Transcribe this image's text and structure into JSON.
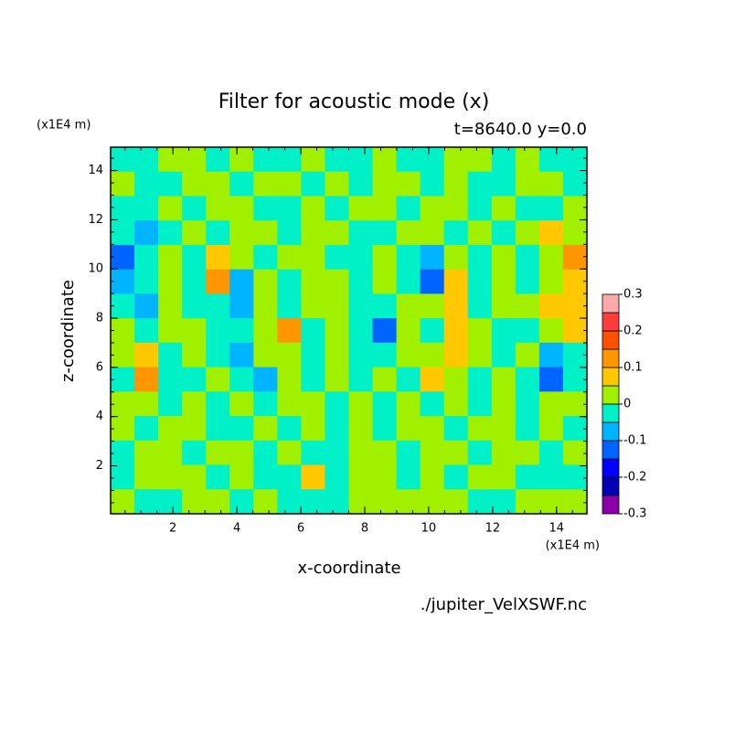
{
  "chart_data": {
    "type": "contour",
    "title": "Filter for acoustic mode (x)",
    "subtitle": "t=8640.0 y=0.0",
    "x_label": "x-coordinate",
    "y_label": "z-coordinate",
    "x_unit": "(x1E4 m)",
    "y_unit": "(x1E4 m)",
    "source": "./jupiter_VelXSWF.nc",
    "xlim": [
      0.05,
      14.95
    ],
    "ylim": [
      0.05,
      14.95
    ],
    "xticks": [
      2,
      4,
      6,
      8,
      10,
      12,
      14
    ],
    "yticks": [
      2,
      4,
      6,
      8,
      10,
      12,
      14
    ],
    "levels": [
      -0.3,
      -0.25,
      -0.2,
      -0.15,
      -0.1,
      -0.05,
      0,
      0.05,
      0.1,
      0.15,
      0.2,
      0.25,
      0.3
    ],
    "colors": [
      "#8c00a8",
      "#0000b4",
      "#0000ff",
      "#0064ff",
      "#00b4ff",
      "#00f0c8",
      "#a0f000",
      "#ffc800",
      "#ff9600",
      "#ff5000",
      "#ff3c3c",
      "#ffaaaa"
    ],
    "colorbar_ticks": [
      -0.3,
      -0.2,
      -0.1,
      0,
      0.1,
      0.2,
      0.3
    ],
    "z": [
      [
        -0.02,
        -0.02,
        0.02,
        0.02,
        -0.02,
        0.02,
        -0.02,
        -0.02,
        0.02,
        -0.02,
        -0.02,
        0.02,
        -0.02,
        -0.02,
        0.02,
        0.02,
        -0.02,
        0.02,
        -0.02,
        -0.02
      ],
      [
        0.02,
        -0.02,
        -0.02,
        0.02,
        0.02,
        -0.02,
        0.02,
        0.02,
        -0.02,
        0.02,
        -0.02,
        0.02,
        0.02,
        -0.02,
        0.02,
        -0.02,
        -0.02,
        0.02,
        0.02,
        -0.02
      ],
      [
        -0.02,
        -0.02,
        0.02,
        -0.02,
        0.02,
        0.02,
        -0.02,
        -0.02,
        0.02,
        -0.02,
        0.02,
        0.02,
        -0.02,
        0.02,
        0.02,
        -0.02,
        0.02,
        -0.02,
        -0.02,
        0.02
      ],
      [
        -0.02,
        -0.06,
        -0.02,
        0.02,
        -0.02,
        0.02,
        0.02,
        -0.02,
        0.02,
        0.02,
        -0.02,
        -0.02,
        0.02,
        0.02,
        -0.02,
        0.02,
        -0.02,
        0.02,
        0.06,
        0.02
      ],
      [
        -0.12,
        -0.02,
        0.02,
        -0.02,
        0.07,
        0.02,
        -0.02,
        0.02,
        0.02,
        -0.02,
        -0.02,
        0.02,
        -0.02,
        -0.07,
        0.02,
        -0.02,
        0.02,
        -0.02,
        0.02,
        0.12
      ],
      [
        -0.06,
        -0.02,
        0.02,
        -0.02,
        0.12,
        -0.06,
        0.02,
        -0.02,
        0.02,
        0.02,
        -0.02,
        0.02,
        -0.02,
        -0.12,
        0.06,
        -0.02,
        0.02,
        -0.02,
        0.02,
        0.06
      ],
      [
        -0.02,
        -0.06,
        0.02,
        -0.02,
        -0.02,
        -0.07,
        0.02,
        -0.02,
        0.02,
        0.02,
        -0.02,
        -0.02,
        0.02,
        0.02,
        0.07,
        -0.02,
        0.02,
        0.02,
        0.06,
        0.07
      ],
      [
        0.02,
        -0.02,
        0.02,
        0.02,
        -0.02,
        -0.02,
        0.02,
        0.12,
        -0.02,
        0.02,
        -0.02,
        -0.12,
        0.02,
        -0.02,
        0.07,
        0.02,
        -0.02,
        -0.02,
        0.02,
        0.06
      ],
      [
        0.02,
        0.07,
        -0.02,
        0.02,
        -0.02,
        -0.06,
        0.02,
        0.02,
        -0.02,
        0.02,
        -0.02,
        -0.02,
        0.02,
        0.02,
        0.06,
        0.02,
        -0.02,
        0.02,
        -0.06,
        -0.02
      ],
      [
        -0.02,
        0.12,
        -0.02,
        -0.02,
        0.02,
        -0.02,
        -0.07,
        0.02,
        -0.02,
        0.02,
        -0.02,
        0.02,
        -0.02,
        0.07,
        0.02,
        -0.02,
        0.02,
        -0.02,
        -0.12,
        -0.02
      ],
      [
        0.02,
        0.02,
        -0.02,
        0.02,
        -0.02,
        0.02,
        -0.02,
        0.02,
        0.02,
        -0.02,
        0.02,
        -0.02,
        0.02,
        -0.02,
        0.02,
        -0.02,
        0.02,
        -0.02,
        0.02,
        0.02
      ],
      [
        0.02,
        -0.02,
        0.02,
        0.02,
        -0.02,
        -0.02,
        0.02,
        -0.02,
        0.02,
        -0.02,
        0.02,
        -0.02,
        0.02,
        0.02,
        -0.02,
        0.02,
        0.02,
        -0.02,
        0.02,
        -0.02
      ],
      [
        -0.02,
        0.02,
        0.02,
        -0.02,
        0.02,
        0.02,
        -0.02,
        0.02,
        -0.02,
        -0.02,
        0.02,
        0.02,
        -0.02,
        0.02,
        0.02,
        -0.02,
        0.02,
        0.02,
        -0.02,
        0.02
      ],
      [
        -0.02,
        0.02,
        0.02,
        0.02,
        -0.02,
        0.02,
        -0.02,
        -0.02,
        0.07,
        -0.02,
        0.02,
        0.02,
        -0.02,
        0.02,
        -0.02,
        0.02,
        0.02,
        -0.02,
        -0.02,
        -0.02
      ],
      [
        0.02,
        -0.02,
        -0.02,
        0.02,
        0.02,
        -0.02,
        0.02,
        -0.02,
        -0.02,
        -0.02,
        0.02,
        0.02,
        0.02,
        0.02,
        0.02,
        -0.02,
        -0.02,
        0.02,
        0.02,
        0.02
      ]
    ]
  }
}
